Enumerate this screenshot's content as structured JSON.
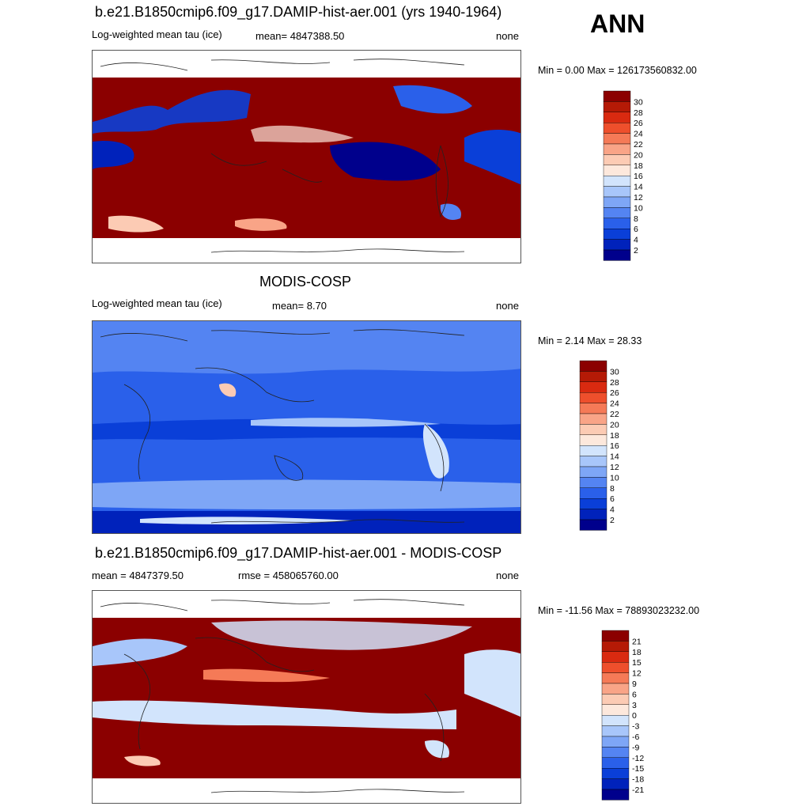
{
  "header": {
    "season": "ANN"
  },
  "panels": [
    {
      "title": "b.e21.B1850cmip6.f09_g17.DAMIP-hist-aer.001 (yrs 1940-1964)",
      "left": "Log-weighted mean tau (ice)",
      "center": "mean= 4847388.50",
      "right": "none",
      "minmax": "Min =   0.00 Max = 126173560832.00",
      "colorbar": {
        "labels": [
          "30",
          "28",
          "26",
          "24",
          "22",
          "20",
          "18",
          "16",
          "14",
          "12",
          "10",
          "8",
          "6",
          "4",
          "2"
        ]
      }
    },
    {
      "title": "MODIS-COSP",
      "left": "Log-weighted mean tau (ice)",
      "center": "mean=   8.70",
      "right": "none",
      "minmax": "Min =   2.14 Max =  28.33",
      "colorbar": {
        "labels": [
          "30",
          "28",
          "26",
          "24",
          "22",
          "20",
          "18",
          "16",
          "14",
          "12",
          "10",
          "8",
          "6",
          "4",
          "2"
        ]
      }
    },
    {
      "title": "b.e21.B1850cmip6.f09_g17.DAMIP-hist-aer.001 - MODIS-COSP",
      "left": "mean = 4847379.50",
      "center": "rmse = 458065760.00",
      "right": "none",
      "minmax": "Min = -11.56 Max = 78893023232.00",
      "colorbar": {
        "labels": [
          "21",
          "18",
          "15",
          "12",
          "9",
          "6",
          "3",
          "0",
          "-3",
          "-6",
          "-9",
          "-12",
          "-15",
          "-18",
          "-21"
        ]
      }
    }
  ],
  "chart_data": [
    {
      "type": "heatmap",
      "title": "b.e21.B1850cmip6.f09_g17.DAMIP-hist-aer.001 (yrs 1940-1964)",
      "variable": "Log-weighted mean tau (ice)",
      "mean": 4847388.5,
      "min": 0.0,
      "max": 126173560832.0,
      "units": "none",
      "colorbar_levels": [
        2,
        4,
        6,
        8,
        10,
        12,
        14,
        16,
        18,
        20,
        22,
        24,
        26,
        28,
        30
      ],
      "colors": [
        "#00008c",
        "#0022bb",
        "#0a3fd8",
        "#2a60ea",
        "#5484f2",
        "#7ea6f6",
        "#a8c6fa",
        "#d2e4fc",
        "#fde8dc",
        "#fccbb4",
        "#f9a487",
        "#f57a57",
        "#ee4f2c",
        "#d92a10",
        "#b51a06",
        "#8b0000"
      ]
    },
    {
      "type": "heatmap",
      "title": "MODIS-COSP",
      "variable": "Log-weighted mean tau (ice)",
      "mean": 8.7,
      "min": 2.14,
      "max": 28.33,
      "units": "none",
      "colorbar_levels": [
        2,
        4,
        6,
        8,
        10,
        12,
        14,
        16,
        18,
        20,
        22,
        24,
        26,
        28,
        30
      ],
      "colors": [
        "#00008c",
        "#0022bb",
        "#0a3fd8",
        "#2a60ea",
        "#5484f2",
        "#7ea6f6",
        "#a8c6fa",
        "#d2e4fc",
        "#fde8dc",
        "#fccbb4",
        "#f9a487",
        "#f57a57",
        "#ee4f2c",
        "#d92a10",
        "#b51a06",
        "#8b0000"
      ]
    },
    {
      "type": "heatmap",
      "title": "b.e21.B1850cmip6.f09_g17.DAMIP-hist-aer.001 - MODIS-COSP",
      "mean": 4847379.5,
      "rmse": 458065760.0,
      "min": -11.56,
      "max": 78893023232.0,
      "units": "none",
      "colorbar_levels": [
        -21,
        -18,
        -15,
        -12,
        -9,
        -6,
        -3,
        0,
        3,
        6,
        9,
        12,
        15,
        18,
        21
      ],
      "colors": [
        "#00008c",
        "#0022bb",
        "#0a3fd8",
        "#2a60ea",
        "#5484f2",
        "#7ea6f6",
        "#a8c6fa",
        "#d2e4fc",
        "#fde8dc",
        "#fccbb4",
        "#f9a487",
        "#f57a57",
        "#ee4f2c",
        "#d92a10",
        "#b51a06",
        "#8b0000"
      ]
    }
  ]
}
